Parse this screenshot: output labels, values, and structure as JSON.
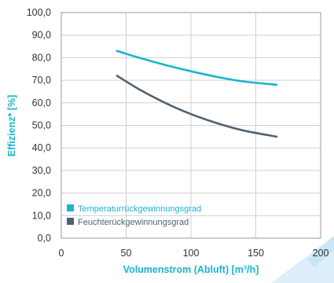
{
  "chart_data": {
    "type": "line",
    "xlabel": "Volumenstrom (Abluft) [m³/h]",
    "ylabel": "Effizienz* [%]",
    "xlim": [
      0,
      200
    ],
    "ylim": [
      0,
      100
    ],
    "x_ticks": [
      "0",
      "50",
      "100",
      "150",
      "200"
    ],
    "y_ticks": [
      "0,0",
      "10,0",
      "20,0",
      "30,0",
      "40,0",
      "50,0",
      "60,0",
      "70,0",
      "80,0",
      "90,0",
      "100,0"
    ],
    "grid": true,
    "legend_position": "bottom-left",
    "series": [
      {
        "name": "Temperaturrückgewinnungsgrad",
        "color": "#1BB3D1",
        "x": [
          43,
          60,
          80,
          100,
          120,
          140,
          166
        ],
        "y": [
          83.0,
          80.0,
          76.8,
          74.0,
          71.5,
          69.5,
          68.0
        ]
      },
      {
        "name": "Feuchterückgewinnungsgrad",
        "color": "#4F6274",
        "x": [
          43,
          60,
          80,
          100,
          120,
          140,
          166
        ],
        "y": [
          72.0,
          66.0,
          60.0,
          55.0,
          51.0,
          47.8,
          45.0
        ]
      }
    ]
  },
  "watermark_color": "#DCEFFA"
}
